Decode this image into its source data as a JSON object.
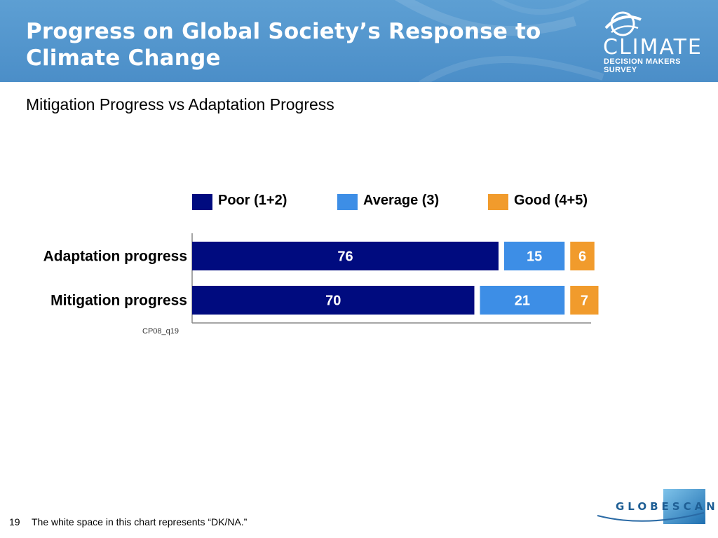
{
  "header": {
    "title_line1": "Progress on Global Society’s Response to",
    "title_line2": "Climate Change",
    "logo": {
      "icon": "climate-globe-icon",
      "word": "CLIMATE",
      "subtitle": "DECISION MAKERS SURVEY"
    },
    "colors": {
      "header_bg": "#5d9fd3"
    }
  },
  "subtitle": "Mitigation Progress vs Adaptation Progress",
  "chart_data": {
    "type": "bar",
    "orientation": "horizontal",
    "stacked": true,
    "categories": [
      "Adaptation progress",
      "Mitigation progress"
    ],
    "series": [
      {
        "name": "Poor (1+2)",
        "values": [
          76,
          70
        ],
        "color": "#000b7f",
        "label_color": "#ffffff"
      },
      {
        "name": "Average (3)",
        "values": [
          15,
          21
        ],
        "color": "#3d8ee6",
        "label_color": "#ffffff"
      },
      {
        "name": "Good (4+5)",
        "values": [
          6,
          7
        ],
        "color": "#f19b2c",
        "label_color": "#ffffff"
      }
    ],
    "xlim": [
      0,
      100
    ],
    "legend_position": "top",
    "grid": false,
    "source_code": "CP08_q19"
  },
  "footer": {
    "page_number": "19",
    "note": "The white space in this chart represents “DK/NA.”",
    "brand": "GLOBESCAN",
    "brand_icon": "globescan-logo-icon"
  }
}
